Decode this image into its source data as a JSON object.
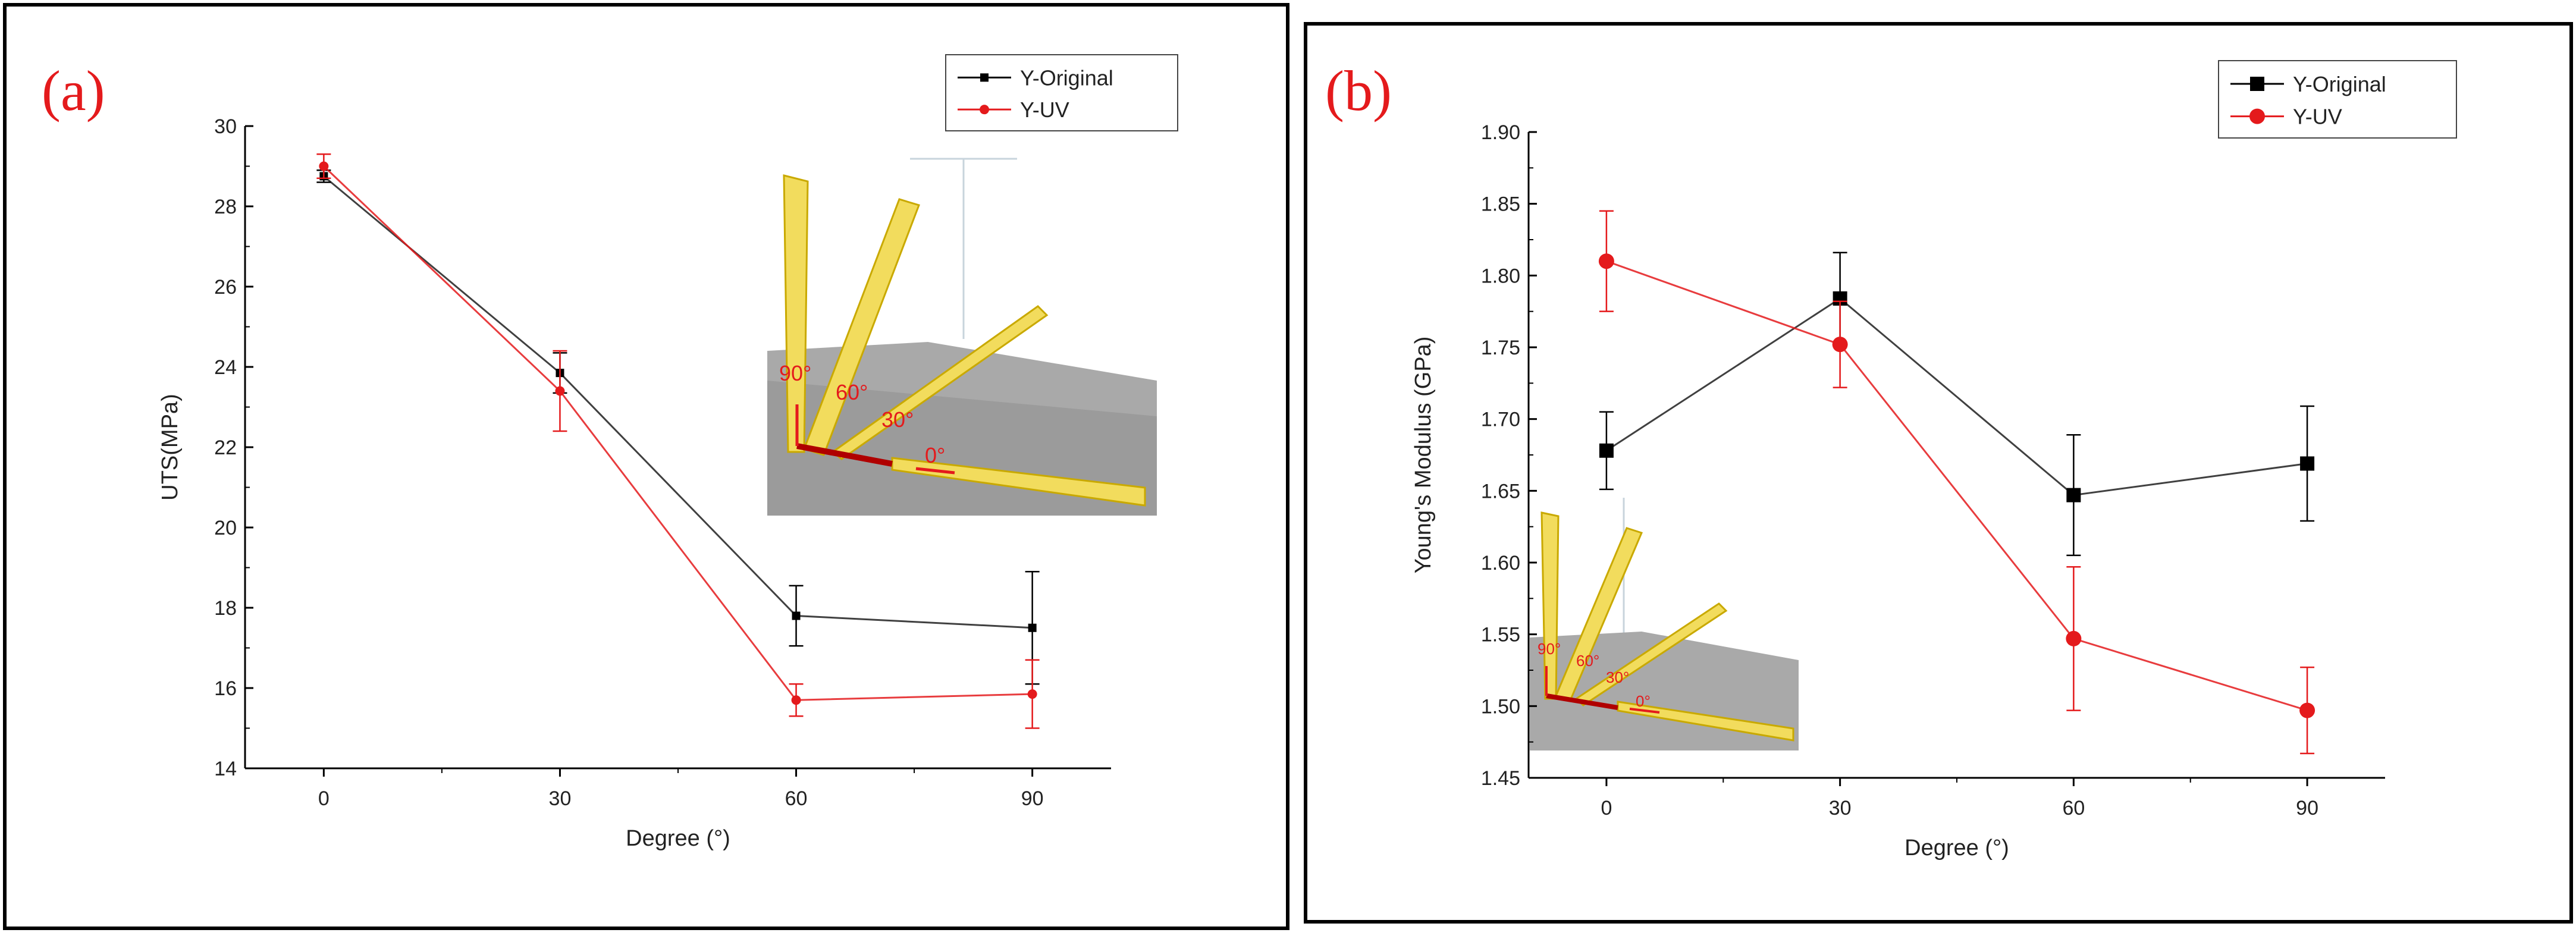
{
  "chart_data": [
    {
      "panel_label": "(a)",
      "type": "line",
      "xlabel": "Degree (°)",
      "ylabel": "UTS(MPa)",
      "x": [
        0,
        30,
        60,
        90
      ],
      "x_ticks": [
        "0",
        "30",
        "60",
        "90"
      ],
      "xlim": [
        -10,
        100
      ],
      "ylim": [
        14,
        30
      ],
      "y_ticks": [
        "14",
        "16",
        "18",
        "20",
        "22",
        "24",
        "26",
        "28",
        "30"
      ],
      "legend_location": "top-right",
      "series": [
        {
          "name": "Y-Original",
          "color": "#000000",
          "marker": "square-small",
          "values": [
            28.75,
            23.85,
            17.8,
            17.5
          ],
          "errors": [
            0.15,
            0.5,
            0.75,
            1.4
          ]
        },
        {
          "name": "Y-UV",
          "color": "#e41a1c",
          "marker": "circle-small",
          "values": [
            29.0,
            23.4,
            15.7,
            15.85
          ],
          "errors": [
            0.3,
            1.0,
            0.4,
            0.85
          ]
        }
      ],
      "inset": {
        "angles": [
          "90°",
          "60°",
          "30°",
          "0°"
        ]
      }
    },
    {
      "panel_label": "(b)",
      "type": "line",
      "xlabel": "Degree (°)",
      "ylabel": "Young's Modulus (GPa)",
      "x": [
        0,
        30,
        60,
        90
      ],
      "x_ticks": [
        "0",
        "30",
        "60",
        "90"
      ],
      "xlim": [
        -10,
        100
      ],
      "ylim": [
        1.45,
        1.9
      ],
      "y_ticks": [
        "1.45",
        "1.50",
        "1.55",
        "1.60",
        "1.65",
        "1.70",
        "1.75",
        "1.80",
        "1.85",
        "1.90"
      ],
      "legend_location": "top-right",
      "series": [
        {
          "name": "Y-Original",
          "color": "#000000",
          "marker": "square",
          "values": [
            1.678,
            1.784,
            1.647,
            1.669
          ],
          "errors": [
            0.027,
            0.032,
            0.042,
            0.04
          ]
        },
        {
          "name": "Y-UV",
          "color": "#e41a1c",
          "marker": "circle",
          "values": [
            1.81,
            1.752,
            1.547,
            1.497
          ],
          "errors": [
            0.035,
            0.03,
            0.05,
            0.03
          ]
        }
      ],
      "inset": {
        "angles": [
          "90°",
          "60°",
          "30°",
          "0°"
        ]
      }
    }
  ]
}
